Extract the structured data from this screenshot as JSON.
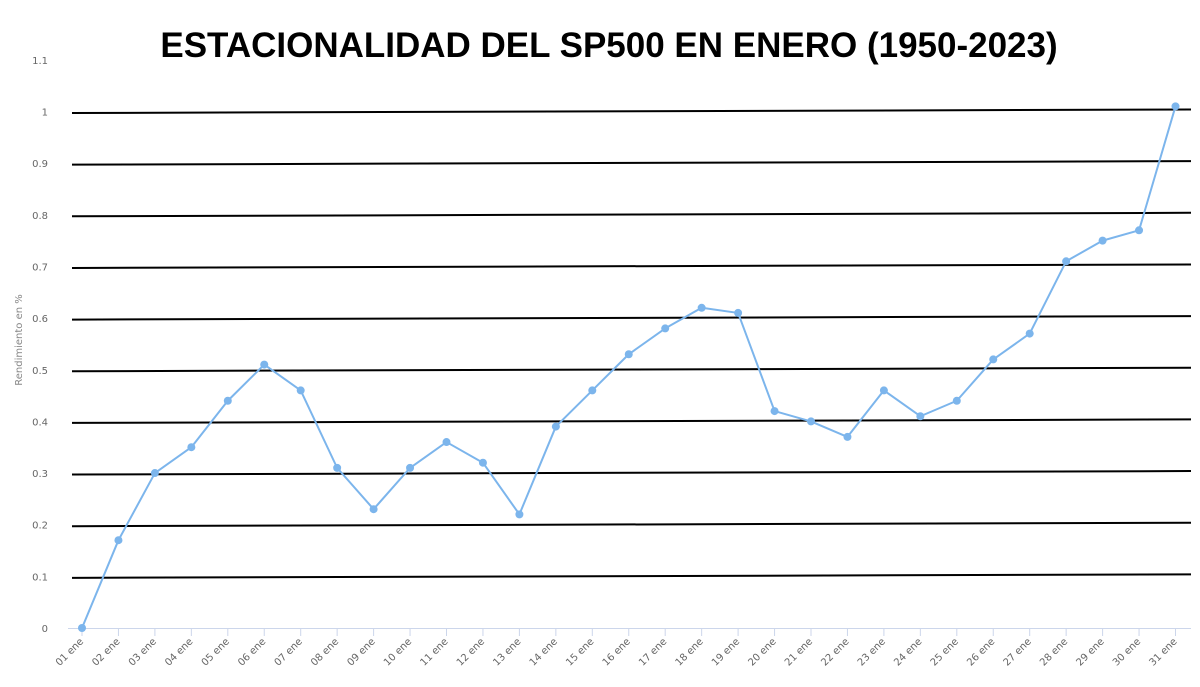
{
  "chart_data": {
    "type": "line",
    "title": "ESTACIONALIDAD DEL SP500 EN ENERO (1950-2023)",
    "ylabel": "Rendimiento en %",
    "xlabel": "",
    "ylim": [
      0,
      1.1
    ],
    "yticks": [
      "0",
      "0.1",
      "0.2",
      "0.3",
      "0.4",
      "0.5",
      "0.6",
      "0.7",
      "0.8",
      "0.9",
      "1",
      "1.1"
    ],
    "categories": [
      "01 ene",
      "02 ene",
      "03 ene",
      "04 ene",
      "05 ene",
      "06 ene",
      "07 ene",
      "08 ene",
      "09 ene",
      "10 ene",
      "11 ene",
      "12 ene",
      "13 ene",
      "14 ene",
      "15 ene",
      "16 ene",
      "17 ene",
      "18 ene",
      "19 ene",
      "20 ene",
      "21 ene",
      "22 ene",
      "23 ene",
      "24 ene",
      "25 ene",
      "26 ene",
      "27 ene",
      "28 ene",
      "29 ene",
      "30 ene",
      "31 ene"
    ],
    "series": [
      {
        "values": [
          0,
          0.17,
          0.3,
          0.35,
          0.44,
          0.51,
          0.46,
          0.31,
          0.23,
          0.31,
          0.36,
          0.32,
          0.22,
          0.39,
          0.46,
          0.53,
          0.58,
          0.62,
          0.61,
          0.42,
          0.4,
          0.37,
          0.46,
          0.41,
          0.44,
          0.52,
          0.57,
          0.71,
          0.75,
          0.77,
          1.01
        ],
        "color": "#7cb5ec"
      }
    ],
    "grid": true,
    "legend": "none"
  }
}
